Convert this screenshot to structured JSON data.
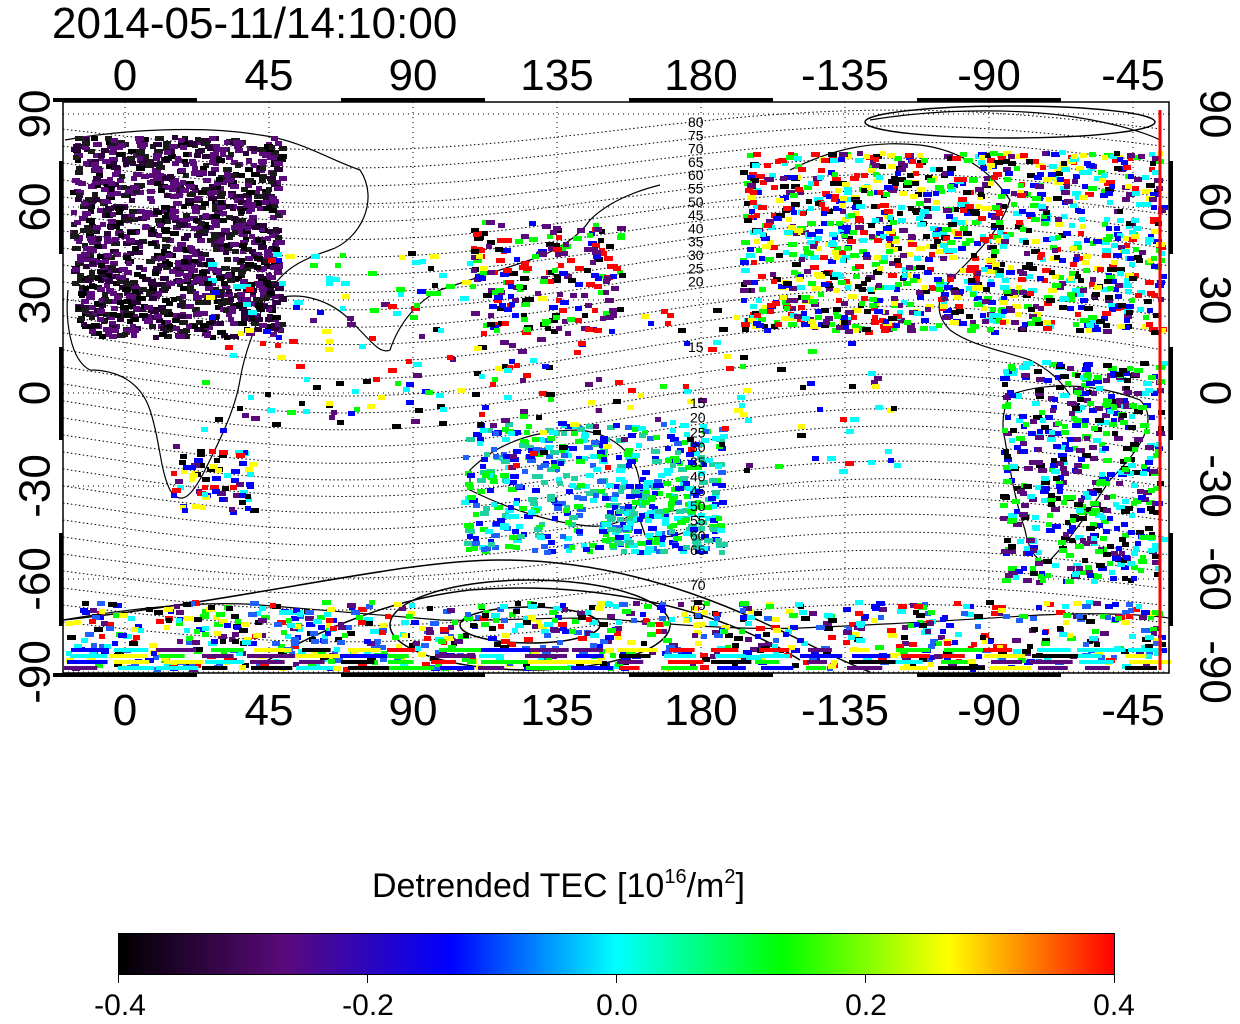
{
  "title": "2014-05-11/14:10:00",
  "map": {
    "lon_ticks": [
      "0",
      "45",
      "90",
      "135",
      "180",
      "-135",
      "-90",
      "-45"
    ],
    "lat_ticks": [
      "90",
      "60",
      "30",
      "0",
      "-30",
      "-60",
      "-90"
    ],
    "contour_labels_north": [
      "80",
      "75",
      "70",
      "65",
      "60",
      "55",
      "50",
      "45",
      "40",
      "35",
      "30",
      "25",
      "20",
      "15"
    ],
    "contour_labels_south": [
      "15",
      "20",
      "25",
      "30",
      "35",
      "40",
      "45",
      "50",
      "55",
      "60",
      "65",
      "70",
      "75"
    ],
    "terminator_color": "#ff0000",
    "grid": "dotted"
  },
  "colorbar": {
    "title_prefix": "Detrended TEC  [10",
    "title_exp": "16",
    "title_mid": "/m",
    "title_exp2": "2",
    "title_suffix": "]",
    "tick_labels": [
      "-0.4",
      "-0.2",
      "0.0",
      "0.2",
      "0.4"
    ],
    "range": [
      -0.4,
      0.4
    ],
    "colors": [
      "#000000",
      "#5a0a7a",
      "#0000ff",
      "#00ffff",
      "#00ff00",
      "#ffff00",
      "#ff0000"
    ]
  }
}
